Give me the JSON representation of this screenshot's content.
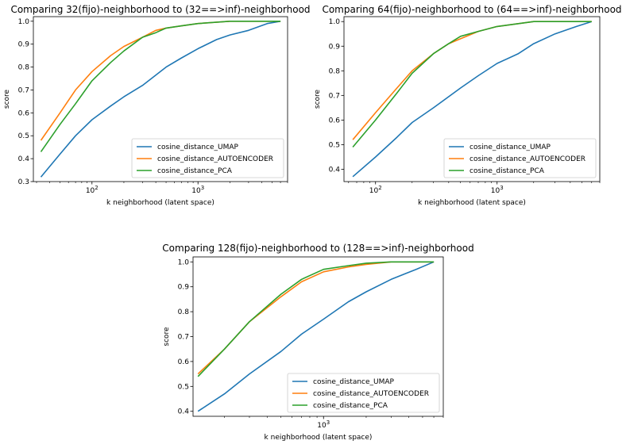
{
  "chart_data": [
    {
      "type": "line",
      "title": "Comparing 32(fijo)-neighborhood to (32==>inf)-neighborhood",
      "xlabel": "k neighborhood (latent space)",
      "ylabel": "score",
      "xscale": "log",
      "xlim": [
        28,
        7000
      ],
      "ylim": [
        0.3,
        1.02
      ],
      "x_ticks": [
        {
          "value": 100,
          "base": "10",
          "exp": "2"
        },
        {
          "value": 1000,
          "base": "10",
          "exp": "3"
        }
      ],
      "y_ticks": [
        0.3,
        0.4,
        0.5,
        0.6,
        0.7,
        0.8,
        0.9,
        1.0
      ],
      "y_tick_labels": [
        "0.3",
        "0.4",
        "0.5",
        "0.6",
        "0.7",
        "0.8",
        "0.9",
        "1.0"
      ],
      "grid": false,
      "legend_position": "lower-right",
      "series": [
        {
          "name": "cosine_distance_UMAP",
          "color": "#1f77b4",
          "points": [
            [
              33,
              0.32
            ],
            [
              50,
              0.42
            ],
            [
              70,
              0.5
            ],
            [
              100,
              0.57
            ],
            [
              150,
              0.63
            ],
            [
              200,
              0.67
            ],
            [
              300,
              0.72
            ],
            [
              500,
              0.8
            ],
            [
              700,
              0.84
            ],
            [
              1000,
              0.88
            ],
            [
              1500,
              0.92
            ],
            [
              2000,
              0.94
            ],
            [
              3000,
              0.96
            ],
            [
              4500,
              0.99
            ],
            [
              6000,
              1.0
            ]
          ]
        },
        {
          "name": "cosine_distance_AUTOENCODER",
          "color": "#ff7f0e",
          "points": [
            [
              33,
              0.48
            ],
            [
              50,
              0.6
            ],
            [
              70,
              0.7
            ],
            [
              100,
              0.78
            ],
            [
              150,
              0.85
            ],
            [
              200,
              0.89
            ],
            [
              300,
              0.93
            ],
            [
              400,
              0.96
            ],
            [
              500,
              0.97
            ],
            [
              700,
              0.98
            ],
            [
              1000,
              0.99
            ],
            [
              2000,
              1.0
            ],
            [
              6000,
              1.0
            ]
          ]
        },
        {
          "name": "cosine_distance_PCA",
          "color": "#2ca02c",
          "points": [
            [
              33,
              0.43
            ],
            [
              50,
              0.55
            ],
            [
              70,
              0.64
            ],
            [
              100,
              0.74
            ],
            [
              150,
              0.82
            ],
            [
              200,
              0.87
            ],
            [
              300,
              0.93
            ],
            [
              400,
              0.95
            ],
            [
              500,
              0.97
            ],
            [
              700,
              0.98
            ],
            [
              1000,
              0.99
            ],
            [
              2000,
              1.0
            ],
            [
              6000,
              1.0
            ]
          ]
        }
      ]
    },
    {
      "type": "line",
      "title": "Comparing 64(fijo)-neighborhood to (64==>inf)-neighborhood",
      "xlabel": "k neighborhood (latent space)",
      "ylabel": "score",
      "xscale": "log",
      "xlim": [
        55,
        7000
      ],
      "ylim": [
        0.35,
        1.02
      ],
      "x_ticks": [
        {
          "value": 100,
          "base": "10",
          "exp": "2"
        },
        {
          "value": 1000,
          "base": "10",
          "exp": "3"
        }
      ],
      "y_ticks": [
        0.4,
        0.5,
        0.6,
        0.7,
        0.8,
        0.9,
        1.0
      ],
      "y_tick_labels": [
        "0.4",
        "0.5",
        "0.6",
        "0.7",
        "0.8",
        "0.9",
        "1.0"
      ],
      "grid": false,
      "legend_position": "lower-right",
      "series": [
        {
          "name": "cosine_distance_UMAP",
          "color": "#1f77b4",
          "points": [
            [
              65,
              0.37
            ],
            [
              100,
              0.45
            ],
            [
              150,
              0.53
            ],
            [
              200,
              0.59
            ],
            [
              300,
              0.65
            ],
            [
              500,
              0.73
            ],
            [
              700,
              0.78
            ],
            [
              1000,
              0.83
            ],
            [
              1500,
              0.87
            ],
            [
              2000,
              0.91
            ],
            [
              3000,
              0.95
            ],
            [
              4500,
              0.98
            ],
            [
              6000,
              1.0
            ]
          ]
        },
        {
          "name": "cosine_distance_AUTOENCODER",
          "color": "#ff7f0e",
          "points": [
            [
              65,
              0.52
            ],
            [
              100,
              0.63
            ],
            [
              150,
              0.73
            ],
            [
              200,
              0.8
            ],
            [
              300,
              0.87
            ],
            [
              400,
              0.91
            ],
            [
              500,
              0.93
            ],
            [
              700,
              0.96
            ],
            [
              1000,
              0.98
            ],
            [
              2000,
              1.0
            ],
            [
              6000,
              1.0
            ]
          ]
        },
        {
          "name": "cosine_distance_PCA",
          "color": "#2ca02c",
          "points": [
            [
              65,
              0.49
            ],
            [
              100,
              0.6
            ],
            [
              150,
              0.71
            ],
            [
              200,
              0.79
            ],
            [
              300,
              0.87
            ],
            [
              400,
              0.91
            ],
            [
              500,
              0.94
            ],
            [
              700,
              0.96
            ],
            [
              1000,
              0.98
            ],
            [
              2000,
              1.0
            ],
            [
              6000,
              1.0
            ]
          ]
        }
      ]
    },
    {
      "type": "line",
      "title": "Comparing 128(fijo)-neighborhood to (128==>inf)-neighborhood",
      "xlabel": "k neighborhood (latent space)",
      "ylabel": "score",
      "xscale": "log",
      "xlim": [
        120,
        7000
      ],
      "ylim": [
        0.38,
        1.02
      ],
      "x_ticks": [
        {
          "value": 1000,
          "base": "10",
          "exp": "3"
        }
      ],
      "y_ticks": [
        0.4,
        0.5,
        0.6,
        0.7,
        0.8,
        0.9,
        1.0
      ],
      "y_tick_labels": [
        "0.4",
        "0.5",
        "0.6",
        "0.7",
        "0.8",
        "0.9",
        "1.0"
      ],
      "grid": false,
      "legend_position": "lower-right",
      "series": [
        {
          "name": "cosine_distance_UMAP",
          "color": "#1f77b4",
          "points": [
            [
              130,
              0.4
            ],
            [
              200,
              0.47
            ],
            [
              300,
              0.55
            ],
            [
              500,
              0.64
            ],
            [
              700,
              0.71
            ],
            [
              1000,
              0.77
            ],
            [
              1500,
              0.84
            ],
            [
              2000,
              0.88
            ],
            [
              3000,
              0.93
            ],
            [
              4500,
              0.97
            ],
            [
              6000,
              1.0
            ]
          ]
        },
        {
          "name": "cosine_distance_AUTOENCODER",
          "color": "#ff7f0e",
          "points": [
            [
              130,
              0.55
            ],
            [
              200,
              0.65
            ],
            [
              300,
              0.76
            ],
            [
              500,
              0.86
            ],
            [
              700,
              0.92
            ],
            [
              1000,
              0.96
            ],
            [
              1500,
              0.98
            ],
            [
              2000,
              0.99
            ],
            [
              3000,
              1.0
            ],
            [
              6000,
              1.0
            ]
          ]
        },
        {
          "name": "cosine_distance_PCA",
          "color": "#2ca02c",
          "points": [
            [
              130,
              0.54
            ],
            [
              200,
              0.65
            ],
            [
              300,
              0.76
            ],
            [
              500,
              0.87
            ],
            [
              700,
              0.93
            ],
            [
              1000,
              0.97
            ],
            [
              1500,
              0.985
            ],
            [
              2000,
              0.995
            ],
            [
              3000,
              1.0
            ],
            [
              6000,
              1.0
            ]
          ]
        }
      ]
    }
  ]
}
